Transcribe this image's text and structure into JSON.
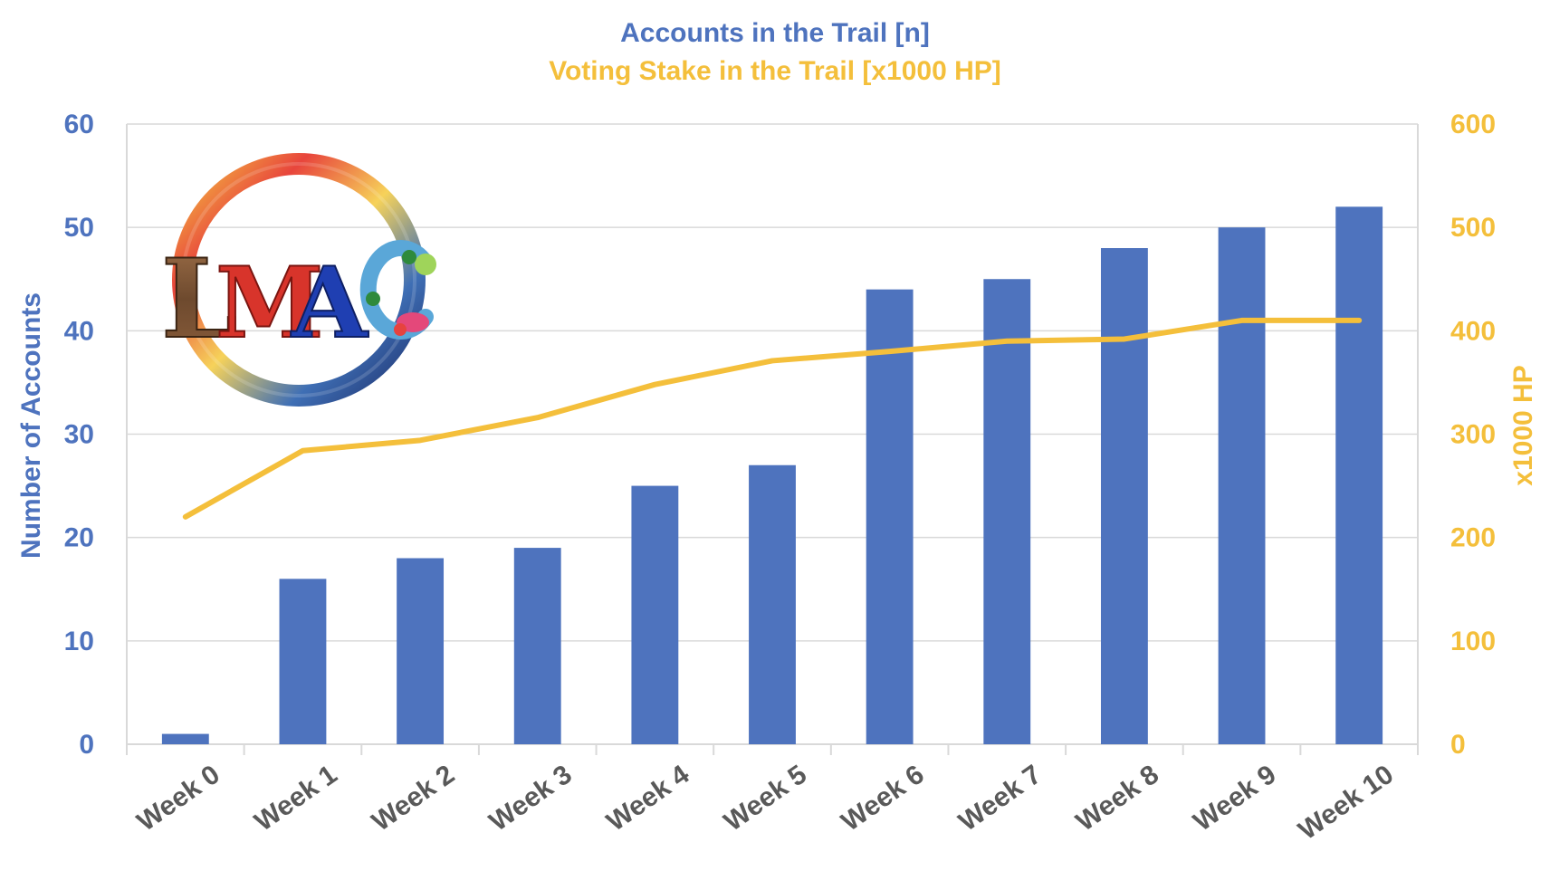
{
  "colors": {
    "bars": "#4e73be",
    "line": "#f4bf3b",
    "grid": "#d9d9d9",
    "xtick": "#595959"
  },
  "logo": {
    "text": "LMAC"
  },
  "chart_data": {
    "type": "bar",
    "title": "Accounts in the Trail [n]",
    "subtitle": "Voting Stake in the Trail [x1000 HP]",
    "categories": [
      "Week 0",
      "Week 1",
      "Week 2",
      "Week 3",
      "Week 4",
      "Week 5",
      "Week 6",
      "Week 7",
      "Week 8",
      "Week 9",
      "Week 10"
    ],
    "series": [
      {
        "type": "bar",
        "axis": "left",
        "values": [
          1,
          16,
          18,
          19,
          25,
          27,
          44,
          45,
          48,
          50,
          52
        ]
      },
      {
        "type": "line",
        "axis": "right",
        "values": [
          220,
          284,
          294,
          316,
          348,
          371,
          380,
          390,
          392,
          410,
          410
        ]
      }
    ],
    "ylabel": "Number of Accounts",
    "ylabel_right": "x1000 HP",
    "ylim": [
      0,
      60
    ],
    "ylim_right": [
      0,
      600
    ],
    "yticks": [
      0,
      10,
      20,
      30,
      40,
      50,
      60
    ],
    "yticks_right": [
      0,
      100,
      200,
      300,
      400,
      500,
      600
    ],
    "grid": true,
    "legend": "none"
  }
}
